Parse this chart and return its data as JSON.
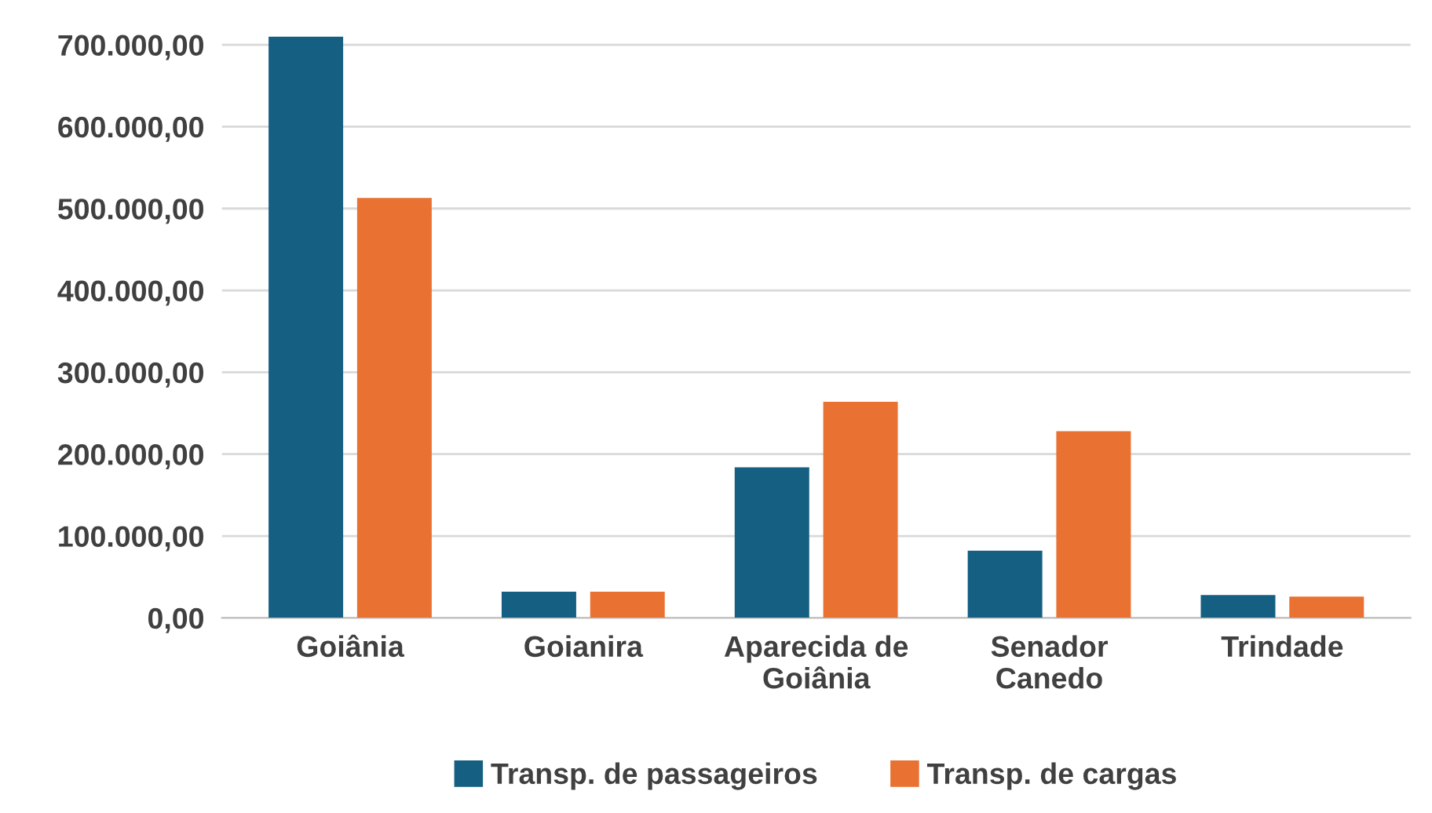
{
  "chart_data": {
    "type": "bar",
    "categories": [
      "Goiânia",
      "Goianira",
      "Aparecida de\nGoiânia",
      "Senador\nCanedo",
      "Trindade"
    ],
    "series": [
      {
        "name": "Transp. de passageiros",
        "color": "#156082",
        "values": [
          710000,
          32000,
          184000,
          82000,
          28000
        ]
      },
      {
        "name": "Transp. de cargas",
        "color": "#e97132",
        "values": [
          513000,
          32000,
          264000,
          228000,
          26000
        ]
      }
    ],
    "ylim": [
      0,
      715000
    ],
    "yticks": [
      {
        "value": 0,
        "label": "0,00"
      },
      {
        "value": 100000,
        "label": "100.000,00"
      },
      {
        "value": 200000,
        "label": "200.000,00"
      },
      {
        "value": 300000,
        "label": "300.000,00"
      },
      {
        "value": 400000,
        "label": "400.000,00"
      },
      {
        "value": 500000,
        "label": "500.000,00"
      },
      {
        "value": 600000,
        "label": "600.000,00"
      },
      {
        "value": 700000,
        "label": "700.000,00"
      }
    ],
    "grid": "y",
    "legend": "bottom"
  }
}
